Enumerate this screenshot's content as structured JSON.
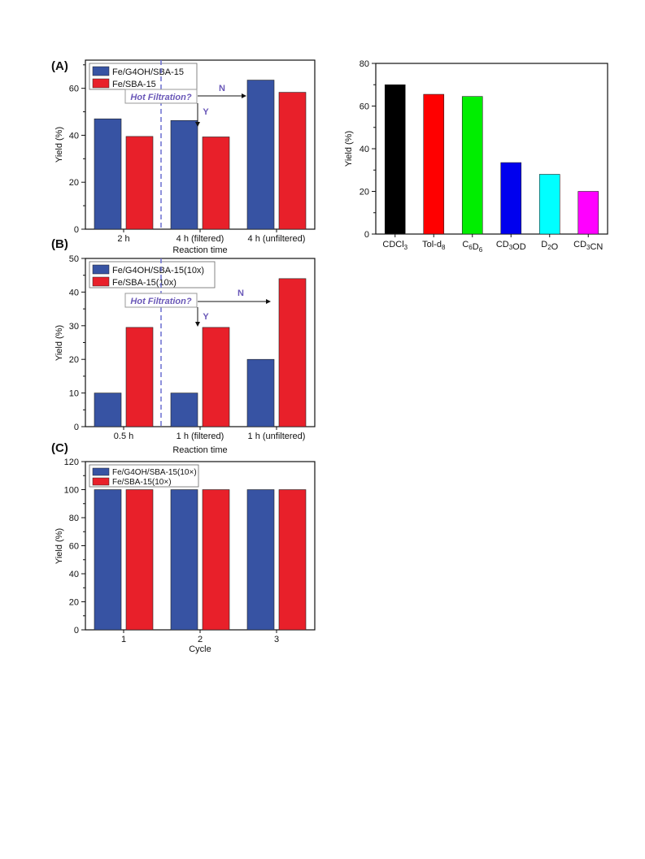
{
  "colors": {
    "series_blue": "#3753a3",
    "series_red": "#e8202a",
    "annotation": "#6a58b8"
  },
  "chart_data": [
    {
      "panel_label": "(A)",
      "type": "bar",
      "categories": [
        "2 h",
        "4 h (filtered)",
        "4 h (unfiltered)"
      ],
      "series": [
        {
          "name": "Fe/G4OH/SBA-15",
          "color": "#3753a3",
          "values": [
            47,
            46.3,
            63.5
          ]
        },
        {
          "name": "Fe/SBA-15",
          "color": "#e8202a",
          "values": [
            39.5,
            39.3,
            58.3
          ]
        }
      ],
      "xlabel": "Reaction time",
      "ylabel": "Yield (%)",
      "ylim": [
        0,
        72
      ],
      "yticks": [
        0,
        20,
        40,
        60
      ],
      "legend_position": "top-left",
      "annotations": {
        "box": "Hot Filtration?",
        "yes": "Y",
        "no": "N"
      }
    },
    {
      "panel_label": "(B)",
      "type": "bar",
      "categories": [
        "0.5 h",
        "1 h (filtered)",
        "1 h (unfiltered)"
      ],
      "series": [
        {
          "name": "Fe/G4OH/SBA-15(10x)",
          "color": "#3753a3",
          "values": [
            10,
            10,
            20
          ]
        },
        {
          "name": "Fe/SBA-15(10x)",
          "color": "#e8202a",
          "values": [
            29.5,
            29.5,
            44
          ]
        }
      ],
      "xlabel": "Reaction time",
      "ylabel": "Yield (%)",
      "ylim": [
        0,
        50
      ],
      "yticks": [
        0,
        10,
        20,
        30,
        40,
        50
      ],
      "legend_position": "top-left",
      "annotations": {
        "box": "Hot Filtration?",
        "yes": "Y",
        "no": "N"
      }
    },
    {
      "panel_label": "(C)",
      "type": "bar",
      "categories": [
        "1",
        "2",
        "3"
      ],
      "series": [
        {
          "name": "Fe/G4OH/SBA-15(10×)",
          "color": "#3753a3",
          "values": [
            100,
            100,
            100
          ]
        },
        {
          "name": "Fe/SBA-15(10×)",
          "color": "#e8202a",
          "values": [
            100,
            100,
            100
          ]
        }
      ],
      "xlabel": "Cycle",
      "ylabel": "Yield (%)",
      "ylim": [
        0,
        120
      ],
      "yticks": [
        0,
        20,
        40,
        60,
        80,
        100,
        120
      ],
      "legend_position": "top-left"
    },
    {
      "panel_label": "",
      "type": "bar",
      "categories": [
        {
          "base": "CDCl",
          "sub": "3",
          "rest": ""
        },
        {
          "base": "Tol-d",
          "sub": "8",
          "rest": ""
        },
        {
          "base": "C",
          "sub": "6",
          "rest": "D",
          "sub2": "6"
        },
        {
          "base": "CD",
          "sub": "3",
          "rest": "OD"
        },
        {
          "base": "D",
          "sub": "2",
          "rest": "O"
        },
        {
          "base": "CD",
          "sub": "3",
          "rest": "CN"
        }
      ],
      "values": [
        70,
        65.5,
        64.5,
        33.5,
        28,
        20
      ],
      "bar_colors": [
        "#000000",
        "#ff0000",
        "#00ee00",
        "#0000ee",
        "#00ffff",
        "#ff00ff"
      ],
      "xlabel": "",
      "ylabel": "Yield (%)",
      "ylim": [
        0,
        80
      ],
      "yticks": [
        0,
        20,
        40,
        60,
        80
      ]
    }
  ]
}
